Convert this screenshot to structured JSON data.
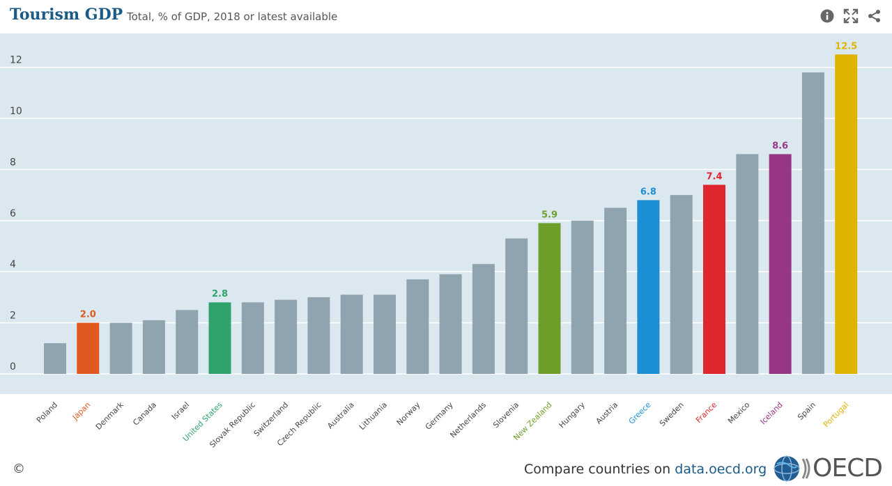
{
  "header": {
    "title": "Tourism GDP",
    "subtitle": "Total, % of GDP, 2018 or latest available",
    "icons": [
      "info-icon",
      "fullscreen-icon",
      "share-icon"
    ]
  },
  "footer": {
    "copyright": "©",
    "compare_text": "Compare countries on ",
    "link_text": "data.oecd.org",
    "logo_text": "OECD"
  },
  "colors": {
    "default_bar": "#90a4b0",
    "plot_bg": "#dce8f0"
  },
  "chart_data": {
    "type": "bar",
    "title": "Tourism GDP",
    "subtitle": "Total, % of GDP, 2018 or latest available",
    "ylim": [
      0,
      13
    ],
    "yticks": [
      0,
      2,
      4,
      6,
      8,
      10,
      12
    ],
    "grid": true,
    "categories": [
      "Poland",
      "Japan",
      "Denmark",
      "Canada",
      "Israel",
      "United States",
      "Slovak Republic",
      "Switzerland",
      "Czech Republic",
      "Australia",
      "Lithuania",
      "Norway",
      "Germany",
      "Netherlands",
      "Slovenia",
      "New Zealand",
      "Hungary",
      "Austria",
      "Greece",
      "Sweden",
      "France",
      "Mexico",
      "Iceland",
      "Spain",
      "Portugal"
    ],
    "values": [
      1.2,
      2.0,
      2.0,
      2.1,
      2.5,
      2.8,
      2.8,
      2.9,
      3.0,
      3.1,
      3.1,
      3.7,
      3.9,
      4.3,
      5.3,
      5.9,
      6.0,
      6.5,
      6.8,
      7.0,
      7.4,
      8.6,
      8.6,
      11.8,
      12.5
    ],
    "highlights": [
      {
        "category": "Japan",
        "label": "2.0",
        "color": "#e05a20"
      },
      {
        "category": "United States",
        "label": "2.8",
        "color": "#2ea36c"
      },
      {
        "category": "New Zealand",
        "label": "5.9",
        "color": "#6e9e2a"
      },
      {
        "category": "Greece",
        "label": "6.8",
        "color": "#1b8fd6"
      },
      {
        "category": "France",
        "label": "7.4",
        "color": "#e0262e"
      },
      {
        "category": "Iceland",
        "label": "8.6",
        "color": "#973684"
      },
      {
        "category": "Portugal",
        "label": "12.5",
        "color": "#e0b300"
      }
    ]
  }
}
